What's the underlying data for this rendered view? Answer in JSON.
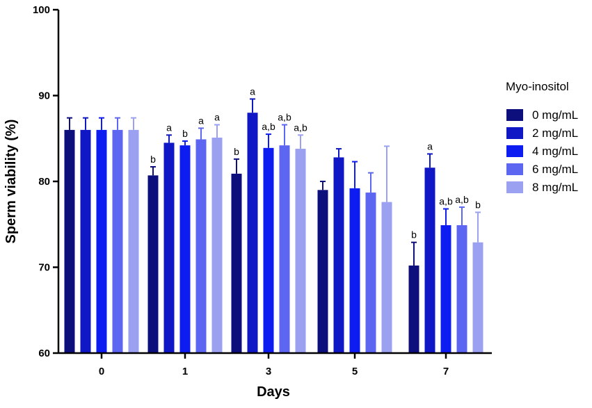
{
  "colors": {
    "series": [
      "#0d0f7c",
      "#0f18c4",
      "#0d1cf0",
      "#5c66f0",
      "#9ba0f0"
    ],
    "axis": "#000000"
  },
  "chart_data": {
    "type": "bar",
    "title": "",
    "xlabel": "Days",
    "ylabel": "Sperm viability (%)",
    "ylim": [
      60,
      100
    ],
    "yticks": [
      "60",
      "70",
      "80",
      "90",
      "100"
    ],
    "grid": false,
    "legend_position": "right",
    "legend_title": "Myo-inositol",
    "categories": [
      "0",
      "1",
      "3",
      "5",
      "7"
    ],
    "series": [
      {
        "name": "0 mg/mL",
        "values": [
          86,
          80.7,
          80.9,
          79.0,
          70.2
        ],
        "errors": [
          1.4,
          1.0,
          1.7,
          1.0,
          2.7
        ],
        "labels": [
          "",
          "b",
          "b",
          "",
          "b"
        ]
      },
      {
        "name": "2 mg/mL",
        "values": [
          86,
          84.5,
          88.0,
          82.8,
          81.6
        ],
        "errors": [
          1.4,
          0.9,
          1.6,
          1.0,
          1.6
        ],
        "labels": [
          "",
          "a",
          "a",
          "",
          "a"
        ]
      },
      {
        "name": "4 mg/mL",
        "values": [
          86,
          84.2,
          83.9,
          79.2,
          74.9
        ],
        "errors": [
          1.4,
          0.5,
          1.6,
          3.1,
          1.9
        ],
        "labels": [
          "",
          "b",
          "a,b",
          "",
          "a,b"
        ]
      },
      {
        "name": "6 mg/mL",
        "values": [
          86,
          84.9,
          84.2,
          78.7,
          74.9
        ],
        "errors": [
          1.4,
          1.3,
          2.4,
          2.3,
          2.1
        ],
        "labels": [
          "",
          "a",
          "a,b",
          "",
          "a,b"
        ]
      },
      {
        "name": "8 mg/mL",
        "values": [
          86,
          85.1,
          83.8,
          77.6,
          72.9
        ],
        "errors": [
          1.4,
          1.5,
          1.6,
          6.5,
          3.5
        ],
        "labels": [
          "",
          "a",
          "a,b",
          "",
          "b"
        ]
      }
    ]
  }
}
